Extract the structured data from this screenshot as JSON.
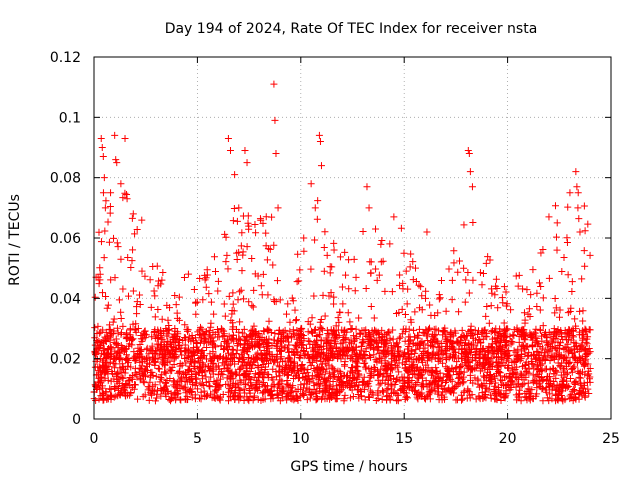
{
  "chart_data": {
    "type": "scatter",
    "title": "Day 194 of 2024, Rate Of TEC Index for receiver nsta",
    "xlabel": "GPS time / hours",
    "ylabel": "ROTI / TECUs",
    "xlim": [
      0,
      25
    ],
    "ylim": [
      0,
      0.12
    ],
    "xticks": [
      0,
      5,
      10,
      15,
      20,
      25
    ],
    "yticks": [
      0,
      0.02,
      0.04,
      0.06,
      0.08,
      0.1,
      0.12
    ],
    "xtick_labels": [
      "0",
      "5",
      "10",
      "15",
      "20",
      "25"
    ],
    "ytick_labels": [
      "0",
      "0.02",
      "0.04",
      "0.06",
      "0.08",
      "0.1",
      "0.12"
    ],
    "grid": true,
    "marker": "+",
    "color": "#ff0000",
    "series": [
      {
        "name": "ROTI",
        "note": "dense band 0.005-0.03 across 0-24 h; representative outliers listed",
        "points": [
          [
            0.1,
            0.047
          ],
          [
            0.2,
            0.047
          ],
          [
            0.3,
            0.048
          ],
          [
            0.35,
            0.093
          ],
          [
            0.4,
            0.09
          ],
          [
            0.45,
            0.087
          ],
          [
            0.5,
            0.08
          ],
          [
            0.55,
            0.07
          ],
          [
            1.0,
            0.094
          ],
          [
            1.05,
            0.086
          ],
          [
            1.1,
            0.085
          ],
          [
            1.3,
            0.078
          ],
          [
            1.5,
            0.093
          ],
          [
            1.6,
            0.073
          ],
          [
            1.9,
            0.068
          ],
          [
            6.5,
            0.093
          ],
          [
            6.6,
            0.089
          ],
          [
            6.8,
            0.081
          ],
          [
            7.3,
            0.089
          ],
          [
            7.4,
            0.085
          ],
          [
            7.0,
            0.07
          ],
          [
            8.7,
            0.111
          ],
          [
            8.75,
            0.099
          ],
          [
            8.8,
            0.088
          ],
          [
            8.9,
            0.07
          ],
          [
            10.5,
            0.078
          ],
          [
            10.7,
            0.07
          ],
          [
            10.9,
            0.094
          ],
          [
            10.95,
            0.092
          ],
          [
            11.0,
            0.084
          ],
          [
            13.2,
            0.077
          ],
          [
            13.3,
            0.07
          ],
          [
            14.5,
            0.067
          ],
          [
            16.1,
            0.062
          ],
          [
            18.1,
            0.089
          ],
          [
            18.15,
            0.088
          ],
          [
            18.2,
            0.082
          ],
          [
            18.3,
            0.077
          ],
          [
            22.0,
            0.067
          ],
          [
            22.4,
            0.065
          ],
          [
            23.3,
            0.082
          ],
          [
            23.35,
            0.077
          ],
          [
            23.4,
            0.07
          ],
          [
            23.5,
            0.062
          ]
        ]
      }
    ]
  }
}
